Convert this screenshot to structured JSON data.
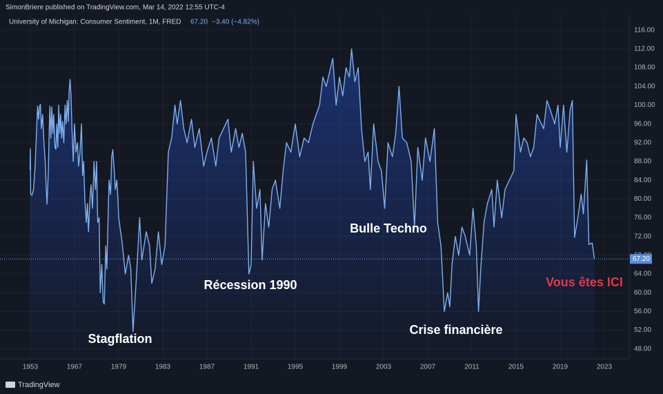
{
  "chart_data": {
    "type": "area",
    "title": "SimonBriere published on TradingView.com, Mar 14, 2022 12:55 UTC-4",
    "series_name": "University of Michigan: Consumer Sentiment, 1M, FRED",
    "last_value": {
      "value": 67.2,
      "label": "67.20"
    },
    "change": "−3.40 (−4.82%)",
    "brand": "TradingView",
    "color": "#7fb0ef",
    "grid": true,
    "annotations": [
      "Stagflation",
      "Récession 1990",
      "Bulle Techno",
      "Crise financière",
      "Vous êtes ICI"
    ],
    "xlim": [
      1943.4,
      2025.3
    ],
    "xticks": [
      1953,
      1967,
      1979,
      1983,
      1987,
      1991,
      1995,
      1999,
      2003,
      2007,
      2011,
      2015,
      2019,
      2023
    ],
    "ylim": [
      45.9,
      119.2
    ],
    "yticks": [
      {
        "value": 48,
        "label": "48.00"
      },
      {
        "value": 52,
        "label": "52.00"
      },
      {
        "value": 56,
        "label": "56.00"
      },
      {
        "value": 60,
        "label": "60.00"
      },
      {
        "value": 64,
        "label": "64.00"
      },
      {
        "value": 68,
        "label": "68.00"
      },
      {
        "value": 72,
        "label": "72.00"
      },
      {
        "value": 76,
        "label": "76.00"
      },
      {
        "value": 80,
        "label": "80.00"
      },
      {
        "value": 84,
        "label": "84.00"
      },
      {
        "value": 88,
        "label": "88.00"
      },
      {
        "value": 92,
        "label": "92.00"
      },
      {
        "value": 96,
        "label": "96.00"
      },
      {
        "value": 100,
        "label": "100.00"
      },
      {
        "value": 104,
        "label": "104.00"
      },
      {
        "value": 108,
        "label": "108.00"
      },
      {
        "value": 112,
        "label": "112.00"
      },
      {
        "value": 116,
        "label": "116.00"
      }
    ],
    "x": [
      1952.9,
      1953.0,
      1953.1,
      1953.5,
      1954.0,
      1954.5,
      1955.0,
      1955.3,
      1955.6,
      1955.9,
      1956.2,
      1956.5,
      1956.9,
      1957.3,
      1957.7,
      1958.0,
      1958.3,
      1958.7,
      1959.0,
      1959.2,
      1959.5,
      1959.8,
      1960.1,
      1960.4,
      1960.8,
      1961.1,
      1961.4,
      1961.7,
      1962.0,
      1962.3,
      1962.6,
      1962.9,
      1963.2,
      1963.6,
      1964.0,
      1964.3,
      1964.7,
      1965.0,
      1965.3,
      1965.6,
      1965.9,
      1966.2,
      1966.6,
      1967.0,
      1967.4,
      1967.8,
      1968.1,
      1968.5,
      1968.9,
      1969.2,
      1969.5,
      1969.8,
      1970.2,
      1970.5,
      1970.8,
      1971.2,
      1971.5,
      1971.9,
      1972.3,
      1972.7,
      1973.0,
      1973.3,
      1973.7,
      1974.0,
      1974.4,
      1974.8,
      1975.1,
      1975.5,
      1975.8,
      1976.1,
      1976.4,
      1976.8,
      1977.1,
      1977.4,
      1977.8,
      1978.1,
      1978.5,
      1978.8,
      1979.0,
      1979.3,
      1979.6,
      1979.9,
      1980.1,
      1980.3,
      1980.6,
      1980.9,
      1981.1,
      1981.5,
      1981.8,
      1982.0,
      1982.3,
      1982.6,
      1982.9,
      1983.2,
      1983.5,
      1983.8,
      1984.1,
      1984.3,
      1984.6,
      1984.9,
      1985.2,
      1985.6,
      1985.9,
      1986.3,
      1986.7,
      1987.0,
      1987.4,
      1987.8,
      1988.1,
      1988.5,
      1988.9,
      1989.2,
      1989.6,
      1989.9,
      1990.2,
      1990.5,
      1990.8,
      1991.0,
      1991.2,
      1991.5,
      1991.8,
      1992.0,
      1992.3,
      1992.6,
      1992.9,
      1993.2,
      1993.6,
      1993.9,
      1994.2,
      1994.6,
      1995.0,
      1995.4,
      1995.8,
      1996.2,
      1996.6,
      1996.9,
      1997.2,
      1997.5,
      1997.8,
      1998.1,
      1998.4,
      1998.7,
      1999.0,
      1999.3,
      1999.6,
      1999.9,
      2000.1,
      2000.4,
      2000.7,
      2001.0,
      2001.3,
      2001.6,
      2001.8,
      2002.1,
      2002.5,
      2002.8,
      2003.1,
      2003.4,
      2003.8,
      2004.1,
      2004.4,
      2004.7,
      2005.1,
      2005.5,
      2005.8,
      2006.1,
      2006.5,
      2006.8,
      2007.2,
      2007.6,
      2007.9,
      2008.2,
      2008.5,
      2008.8,
      2009.0,
      2009.2,
      2009.5,
      2009.8,
      2010.1,
      2010.4,
      2010.8,
      2011.1,
      2011.4,
      2011.6,
      2011.8,
      2012.1,
      2012.4,
      2012.8,
      2013.0,
      2013.3,
      2013.7,
      2014.0,
      2014.4,
      2014.8,
      2015.0,
      2015.4,
      2015.7,
      2016.0,
      2016.3,
      2016.6,
      2016.9,
      2017.1,
      2017.5,
      2017.8,
      2018.1,
      2018.5,
      2018.8,
      2019.0,
      2019.3,
      2019.6,
      2019.9,
      2020.1,
      2020.3,
      2020.6,
      2020.9,
      2021.1,
      2021.4,
      2021.6,
      2021.9,
      2022.1
    ],
    "values": [
      86.2,
      90.7,
      81,
      80.8,
      82,
      87,
      95,
      99.8,
      97,
      99.7,
      100.2,
      95,
      98,
      92,
      88,
      82.5,
      78.9,
      86,
      95,
      99.8,
      93,
      99.6,
      94,
      98,
      91,
      90.6,
      96,
      91,
      100,
      94,
      98,
      93,
      96.5,
      92,
      100,
      96,
      101,
      96.5,
      103,
      105.5,
      102,
      95,
      88,
      96,
      90,
      92,
      87,
      90,
      96,
      85,
      88,
      80,
      75,
      79,
      73,
      80,
      83,
      78,
      88,
      82,
      88,
      75,
      76,
      60,
      66,
      58,
      57.6,
      70,
      65,
      75,
      84,
      81,
      89,
      90.5,
      86,
      82,
      84,
      80,
      76,
      71,
      64,
      68,
      65,
      51.7,
      63,
      76,
      67,
      73,
      70,
      62,
      65,
      73,
      66,
      70,
      90,
      93,
      100,
      96,
      101,
      95,
      92,
      97,
      91,
      95,
      87,
      90,
      93,
      87,
      93,
      95,
      97,
      90,
      95,
      91,
      94,
      90,
      64,
      66,
      88,
      78,
      82,
      67,
      79,
      74,
      82,
      84,
      78,
      86,
      92,
      90,
      96,
      89,
      93,
      92,
      96,
      98,
      100,
      106,
      104,
      107,
      110,
      100,
      106,
      102,
      108,
      106,
      112,
      105,
      108,
      95,
      88,
      90,
      82,
      96,
      88,
      86,
      78,
      92,
      89,
      94,
      104,
      93,
      92,
      88,
      74,
      91,
      84,
      93,
      88,
      95,
      75,
      70,
      56,
      60,
      57,
      66,
      72,
      68,
      74,
      72,
      68,
      78,
      70,
      56,
      65,
      75,
      79,
      82,
      74,
      84,
      76,
      82,
      84,
      86,
      98,
      90,
      93,
      92,
      89,
      91,
      98,
      97,
      95,
      101,
      99,
      96,
      100,
      91,
      100,
      90,
      99,
      101,
      71.8,
      76,
      81,
      76.8,
      88.3,
      70.3,
      70.6,
      67.2
    ]
  }
}
